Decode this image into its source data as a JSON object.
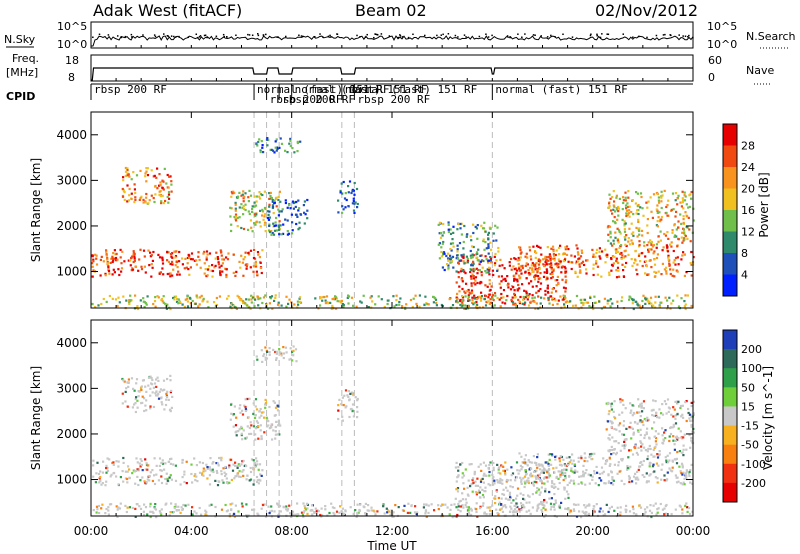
{
  "header": {
    "title": "Adak West (fitACF)",
    "beam": "Beam 02",
    "date": "02/Nov/2012"
  },
  "panels": {
    "nsky_label": "N.Sky",
    "nsearch_label": "N.Search",
    "freq_label_1": "Freq.",
    "freq_label_2": "[MHz]",
    "nave_label": "Nave",
    "cpid_label": "CPID",
    "nsky_ticks": [
      "10^5",
      "10^0"
    ],
    "nsearch_ticks": [
      "10^5",
      "10^0"
    ],
    "freq_ticks": [
      "18",
      "8"
    ],
    "nave_ticks": [
      "60",
      "0"
    ]
  },
  "cpid_segments": [
    {
      "label": "rbsp 200 RF",
      "start_h": 0.0
    },
    {
      "label": "normal (fast) 151 RF",
      "start_h": 6.5
    },
    {
      "label": "rbsp 200 RF",
      "start_h": 7.0
    },
    {
      "label": "rbsp 200 RF",
      "start_h": 7.5
    },
    {
      "label": "normal (fast) 151 RF",
      "start_h": 8.0
    },
    {
      "label": "normal (fast) 151 RF",
      "start_h": 10.0
    },
    {
      "label": "rbsp 200 RF",
      "start_h": 10.5
    },
    {
      "label": "normal (fast) 151 RF",
      "start_h": 16.0
    }
  ],
  "chart_data": [
    {
      "type": "heatmap",
      "name": "power",
      "xlabel": "Time UT",
      "ylabel": "Slant Range [km]",
      "xlim": [
        0,
        24
      ],
      "ylim": [
        200,
        4500
      ],
      "x_ticks": [
        "00:00",
        "04:00",
        "08:00",
        "12:00",
        "16:00",
        "20:00",
        "00:00"
      ],
      "y_ticks": [
        1000,
        2000,
        3000,
        4000
      ],
      "colorbar_label": "Power [dB]",
      "colorbar_ticks": [
        4,
        8,
        12,
        16,
        20,
        24,
        28
      ],
      "colorbar_colors": [
        "#0020ff",
        "#1f4fb8",
        "#2e8a6a",
        "#6fbf4a",
        "#f0c020",
        "#f7931e",
        "#f04a10",
        "#e60000"
      ],
      "regions": [
        {
          "t0": 0.0,
          "t1": 6.8,
          "r0": 900,
          "r1": 1500,
          "level": 0.85
        },
        {
          "t0": 1.2,
          "t1": 3.2,
          "r0": 2500,
          "r1": 3300,
          "level": 0.7
        },
        {
          "t0": 5.5,
          "t1": 7.5,
          "r0": 1900,
          "r1": 2800,
          "level": 0.55
        },
        {
          "t0": 6.5,
          "t1": 8.3,
          "r0": 3600,
          "r1": 3950,
          "level": 0.25
        },
        {
          "t0": 7.0,
          "t1": 8.6,
          "r0": 1800,
          "r1": 2600,
          "level": 0.2
        },
        {
          "t0": 9.8,
          "t1": 10.6,
          "r0": 2300,
          "r1": 3000,
          "level": 0.2
        },
        {
          "t0": 14.5,
          "t1": 19.0,
          "r0": 300,
          "r1": 1400,
          "level": 0.9
        },
        {
          "t0": 13.8,
          "t1": 16.2,
          "r0": 1000,
          "r1": 2100,
          "level": 0.35
        },
        {
          "t0": 17.0,
          "t1": 24.0,
          "r0": 900,
          "r1": 1600,
          "level": 0.75
        },
        {
          "t0": 20.5,
          "t1": 24.0,
          "r0": 1600,
          "r1": 2800,
          "level": 0.6
        },
        {
          "t0": 0.0,
          "t1": 24.0,
          "r0": 200,
          "r1": 500,
          "level": 0.5
        }
      ]
    },
    {
      "type": "heatmap",
      "name": "velocity",
      "xlabel": "Time UT",
      "ylabel": "Slant Range [km]",
      "xlim": [
        0,
        24
      ],
      "ylim": [
        200,
        4500
      ],
      "x_ticks": [
        "00:00",
        "04:00",
        "08:00",
        "12:00",
        "16:00",
        "20:00",
        "00:00"
      ],
      "y_ticks": [
        1000,
        2000,
        3000,
        4000
      ],
      "colorbar_label": "Velocity [m s^-1]",
      "colorbar_ticks": [
        200,
        100,
        50,
        15,
        -15,
        -50,
        -100,
        -200
      ],
      "colorbar_colors": [
        "#1f3fb8",
        "#2e6a5a",
        "#2fa04a",
        "#6fcf3a",
        "#c8c8c8",
        "#f7b020",
        "#f78010",
        "#f03010",
        "#e60000"
      ],
      "regions": [
        {
          "t0": 0.0,
          "t1": 6.8,
          "r0": 900,
          "r1": 1500,
          "level": 0.5
        },
        {
          "t0": 1.2,
          "t1": 3.2,
          "r0": 2500,
          "r1": 3300,
          "level": 0.5
        },
        {
          "t0": 5.5,
          "t1": 7.5,
          "r0": 1900,
          "r1": 2800,
          "level": 0.5
        },
        {
          "t0": 6.5,
          "t1": 8.3,
          "r0": 3600,
          "r1": 3950,
          "level": 0.5
        },
        {
          "t0": 9.8,
          "t1": 10.6,
          "r0": 2300,
          "r1": 3000,
          "level": 0.5
        },
        {
          "t0": 14.5,
          "t1": 19.0,
          "r0": 300,
          "r1": 1400,
          "level": 0.45
        },
        {
          "t0": 17.0,
          "t1": 24.0,
          "r0": 900,
          "r1": 1600,
          "level": 0.4
        },
        {
          "t0": 20.5,
          "t1": 24.0,
          "r0": 1600,
          "r1": 2800,
          "level": 0.5
        },
        {
          "t0": 0.0,
          "t1": 24.0,
          "r0": 200,
          "r1": 500,
          "level": 0.5
        }
      ]
    }
  ]
}
